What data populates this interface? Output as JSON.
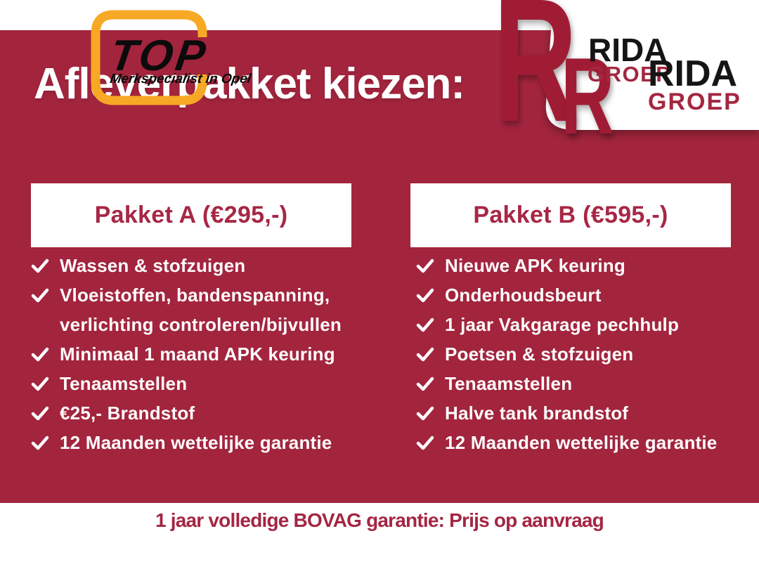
{
  "header": {
    "title": "Afleverpakket kiezen:",
    "top_logo": {
      "name": "TOP",
      "tagline": "Merkspecialist in Opel"
    },
    "rida_logo": {
      "monogram": "R",
      "name": "RIDA",
      "suffix": "GROEP"
    }
  },
  "packages": [
    {
      "title": "Pakket A (€295,-)",
      "items": [
        "Wassen & stofzuigen",
        "Vloeistoffen, bandenspanning,\nverlichting controleren/bijvullen",
        "Minimaal 1 maand APK keuring",
        "Tenaamstellen",
        "€25,- Brandstof",
        "12 Maanden wettelijke garantie"
      ]
    },
    {
      "title": "Pakket B (€595,-)",
      "items": [
        "Nieuwe APK keuring",
        "Onderhoudsbeurt",
        "1 jaar Vakgarage pechhulp",
        "Poetsen & stofzuigen",
        "Tenaamstellen",
        "Halve tank brandstof",
        "12 Maanden wettelijke garantie"
      ]
    }
  ],
  "footer": {
    "text": "1 jaar volledige BOVAG garantie: Prijs op aanvraag"
  },
  "colors": {
    "background_red": "#A3243D",
    "accent_red": "#A72744",
    "logo_red": "#A01D36",
    "logo_orange": "#F7A824",
    "white": "#FFFFFF",
    "black": "#0B0B0B"
  }
}
